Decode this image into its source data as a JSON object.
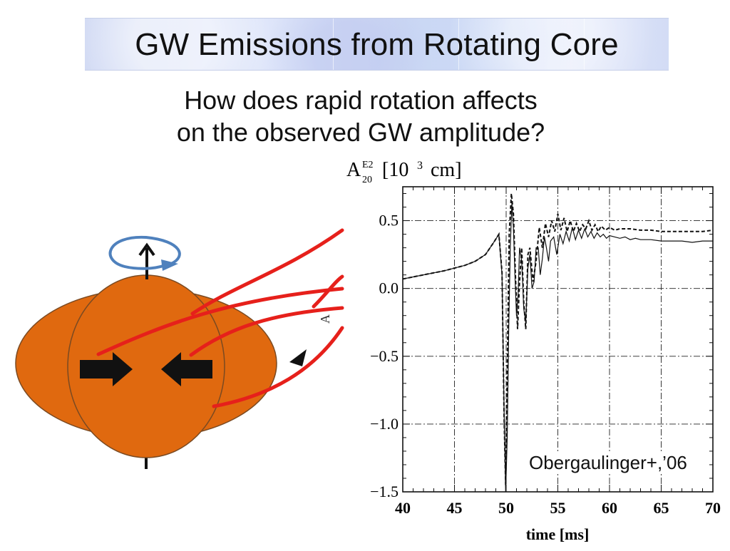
{
  "slide": {
    "title": "GW Emissions from Rotating Core",
    "question_lines": [
      "How does rapid rotation affects",
      "on the observed GW amplitude?"
    ],
    "citation": "Obergaulinger+,’06"
  },
  "colors": {
    "core": "#e0690f",
    "core_outline": "#7a4a22",
    "streamline": "#e6201b",
    "rotation_arrow": "#4f81bd",
    "arrow": "#111111"
  },
  "illustration": {
    "icons": [
      "rotation-arrow-icon",
      "rotation-axis-arrow-icon",
      "inward-arrow-right-icon",
      "inward-arrow-left-icon"
    ],
    "partial_axis_label": "A"
  },
  "chart_data": {
    "type": "line",
    "ylabel_main": "A",
    "ylabel_sup": "E2",
    "ylabel_sub": "20",
    "ylabel_units": "[10",
    "ylabel_exp": "3",
    "ylabel_end": "cm]",
    "xlabel": "time [ms]",
    "xlim": [
      40,
      70
    ],
    "ylim": [
      -1.5,
      0.75
    ],
    "xticks": [
      40,
      45,
      50,
      55,
      60,
      65,
      70
    ],
    "xtick_labels": [
      "40",
      "45",
      "50",
      "55",
      "60",
      "65",
      "70"
    ],
    "yticks": [
      0.5,
      0.0,
      -0.5,
      -1.0,
      -1.5
    ],
    "ytick_labels": [
      "0.5",
      "0.0",
      "−0.5",
      "−1.0",
      "−1.5"
    ],
    "grid": true,
    "series": [
      {
        "style": "solid",
        "x": [
          40,
          42,
          44,
          46,
          47,
          48,
          48.8,
          49.3,
          49.6,
          49.8,
          49.95,
          50.1,
          50.25,
          50.4,
          50.55,
          50.7,
          50.85,
          51.0,
          51.15,
          51.3,
          51.5,
          51.7,
          51.9,
          52.1,
          52.3,
          52.5,
          52.7,
          52.9,
          53.1,
          53.3,
          53.5,
          53.7,
          53.9,
          54.1,
          54.3,
          54.6,
          54.9,
          55.2,
          55.5,
          55.8,
          56.1,
          56.4,
          56.7,
          57.0,
          57.3,
          57.6,
          57.9,
          58.2,
          58.5,
          58.8,
          59.1,
          59.4,
          59.7,
          60.0,
          60.5,
          61,
          61.5,
          62,
          62.5,
          63,
          64,
          65,
          66,
          67,
          68,
          69,
          70
        ],
        "y": [
          0.07,
          0.1,
          0.13,
          0.17,
          0.2,
          0.25,
          0.34,
          0.4,
          0.1,
          -0.9,
          -1.5,
          -1.1,
          -0.3,
          0.3,
          0.63,
          0.45,
          0.1,
          -0.2,
          -0.05,
          0.3,
          0.2,
          -0.15,
          -0.25,
          0.15,
          0.25,
          0.0,
          0.05,
          0.3,
          0.3,
          0.1,
          0.22,
          0.38,
          0.3,
          0.2,
          0.35,
          0.38,
          0.25,
          0.4,
          0.33,
          0.42,
          0.35,
          0.45,
          0.36,
          0.43,
          0.37,
          0.44,
          0.38,
          0.42,
          0.37,
          0.41,
          0.38,
          0.4,
          0.37,
          0.39,
          0.38,
          0.37,
          0.38,
          0.36,
          0.37,
          0.36,
          0.36,
          0.35,
          0.35,
          0.35,
          0.34,
          0.35,
          0.35
        ]
      },
      {
        "style": "dashed",
        "x": [
          40,
          42,
          44,
          46,
          47,
          48,
          48.8,
          49.3,
          49.6,
          49.8,
          49.95,
          50.1,
          50.3,
          50.5,
          50.7,
          50.9,
          51.1,
          51.3,
          51.5,
          51.7,
          51.9,
          52.1,
          52.3,
          52.6,
          52.9,
          53.2,
          53.5,
          53.8,
          54.1,
          54.4,
          54.7,
          55.0,
          55.3,
          55.6,
          55.9,
          56.2,
          56.5,
          56.8,
          57.1,
          57.4,
          57.7,
          58.0,
          58.3,
          58.6,
          58.9,
          59.2,
          59.6,
          60.0,
          60.5,
          61,
          62,
          63,
          64,
          65,
          66,
          67,
          68,
          69,
          70
        ],
        "y": [
          0.07,
          0.1,
          0.13,
          0.17,
          0.2,
          0.25,
          0.34,
          0.4,
          0.12,
          -0.95,
          -1.45,
          -0.6,
          0.4,
          0.7,
          0.55,
          0.1,
          -0.3,
          0.05,
          0.3,
          -0.1,
          -0.3,
          0.25,
          0.3,
          0.05,
          0.2,
          0.45,
          0.3,
          0.48,
          0.38,
          0.5,
          0.42,
          0.55,
          0.43,
          0.52,
          0.42,
          0.5,
          0.42,
          0.48,
          0.42,
          0.47,
          0.44,
          0.5,
          0.43,
          0.47,
          0.42,
          0.46,
          0.43,
          0.45,
          0.43,
          0.44,
          0.44,
          0.43,
          0.43,
          0.42,
          0.42,
          0.42,
          0.42,
          0.42,
          0.43
        ]
      }
    ]
  }
}
